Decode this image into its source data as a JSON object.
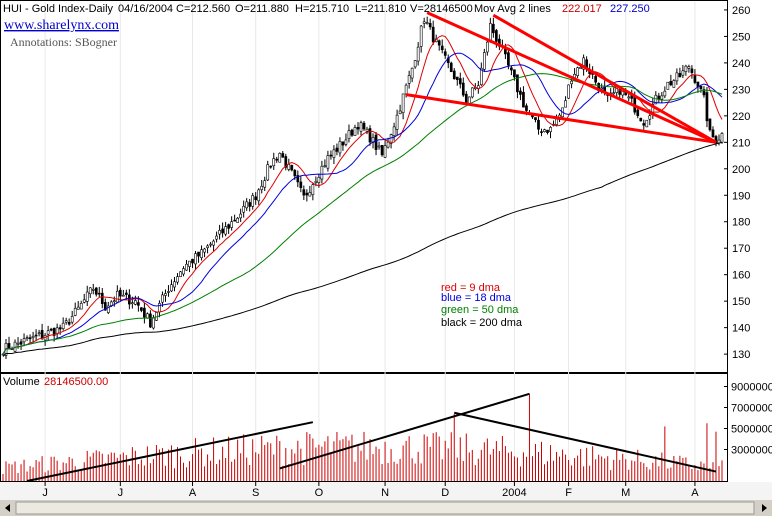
{
  "header": {
    "symbol": "HUI - Gold Index-Daily",
    "date": "04/16/2004",
    "close": "C=212.560",
    "open": "O=211.880",
    "high": "H=215.710",
    "low": "L=211.810",
    "volume": "V=28146500",
    "mov_avg_label": "Mov Avg 2 lines",
    "mov_avg_1": "222.017",
    "mov_avg_2": "227.250",
    "site": "www.sharelynx.com",
    "annotations": "Annotations: SBogner"
  },
  "legend": {
    "red": "red = 9 dma",
    "blue": "blue = 18 dma",
    "green": "green = 50 dma",
    "black": "black = 200 dma"
  },
  "colors": {
    "red_ma": "#e00000",
    "blue_ma": "#0000dd",
    "green_ma": "#008000",
    "black_ma": "#000000",
    "trendline": "#ff0000",
    "volume_bar": "#cc0000",
    "header_red": "#cc0000",
    "header_blue": "#0000cc",
    "site_link": "#0000cc"
  },
  "chart_data": [
    {
      "type": "candlestick",
      "ylim": [
        124,
        263
      ],
      "y_ticks": [
        "130",
        "140",
        "150",
        "160",
        "170",
        "180",
        "190",
        "200",
        "210",
        "220",
        "230",
        "240",
        "250",
        "260"
      ],
      "x_tick_labels": [
        "J",
        "J",
        "A",
        "S",
        "O",
        "N",
        "D",
        "2004",
        "F",
        "M",
        "A"
      ],
      "price_path": [
        {
          "i": 0,
          "p": 132
        },
        {
          "i": 10,
          "p": 136
        },
        {
          "i": 20,
          "p": 140
        },
        {
          "i": 25,
          "p": 147
        },
        {
          "i": 30,
          "p": 155
        },
        {
          "i": 34,
          "p": 148
        },
        {
          "i": 38,
          "p": 152
        },
        {
          "i": 44,
          "p": 150
        },
        {
          "i": 49,
          "p": 142
        },
        {
          "i": 55,
          "p": 155
        },
        {
          "i": 60,
          "p": 163
        },
        {
          "i": 66,
          "p": 168
        },
        {
          "i": 72,
          "p": 175
        },
        {
          "i": 78,
          "p": 182
        },
        {
          "i": 84,
          "p": 190
        },
        {
          "i": 89,
          "p": 202
        },
        {
          "i": 92,
          "p": 206
        },
        {
          "i": 96,
          "p": 198
        },
        {
          "i": 100,
          "p": 189
        },
        {
          "i": 104,
          "p": 197
        },
        {
          "i": 108,
          "p": 204
        },
        {
          "i": 113,
          "p": 210
        },
        {
          "i": 118,
          "p": 217
        },
        {
          "i": 122,
          "p": 212
        },
        {
          "i": 126,
          "p": 205
        },
        {
          "i": 131,
          "p": 220
        },
        {
          "i": 136,
          "p": 238
        },
        {
          "i": 140,
          "p": 257
        },
        {
          "i": 142,
          "p": 252
        },
        {
          "i": 146,
          "p": 243
        },
        {
          "i": 150,
          "p": 235
        },
        {
          "i": 154,
          "p": 226
        },
        {
          "i": 158,
          "p": 232
        },
        {
          "i": 162,
          "p": 254
        },
        {
          "i": 165,
          "p": 247
        },
        {
          "i": 170,
          "p": 233
        },
        {
          "i": 174,
          "p": 222
        },
        {
          "i": 178,
          "p": 215
        },
        {
          "i": 182,
          "p": 215
        },
        {
          "i": 186,
          "p": 222
        },
        {
          "i": 189,
          "p": 235
        },
        {
          "i": 193,
          "p": 241
        },
        {
          "i": 197,
          "p": 233
        },
        {
          "i": 201,
          "p": 226
        },
        {
          "i": 205,
          "p": 230
        },
        {
          "i": 209,
          "p": 225
        },
        {
          "i": 213,
          "p": 218
        },
        {
          "i": 217,
          "p": 226
        },
        {
          "i": 221,
          "p": 232
        },
        {
          "i": 225,
          "p": 235
        },
        {
          "i": 228,
          "p": 239
        },
        {
          "i": 231,
          "p": 232
        },
        {
          "i": 233,
          "p": 226
        },
        {
          "i": 235,
          "p": 213
        },
        {
          "i": 237,
          "p": 211
        },
        {
          "i": 239,
          "p": 213
        }
      ],
      "bar_count": 240,
      "moving_averages": [
        {
          "period": 9,
          "color_key": "red_ma"
        },
        {
          "period": 18,
          "color_key": "blue_ma"
        },
        {
          "period": 50,
          "color_key": "green_ma"
        },
        {
          "period": 200,
          "color_key": "black_ma"
        }
      ],
      "trendlines": [
        {
          "from": {
            "i": 141,
            "p": 259
          },
          "to": {
            "i": 237,
            "p": 210
          }
        },
        {
          "from": {
            "i": 163,
            "p": 258
          },
          "to": {
            "i": 237,
            "p": 210
          }
        },
        {
          "from": {
            "i": 134,
            "p": 228
          },
          "to": {
            "i": 237,
            "p": 210
          }
        }
      ]
    },
    {
      "type": "bar",
      "title": "Volume",
      "value_label": "28146500.00",
      "ylim": [
        0,
        10000000
      ],
      "y_ticks": [
        "3000000",
        "5000000",
        "7000000",
        "9000000"
      ],
      "spikes": [
        {
          "i": 150,
          "v": 6400000
        },
        {
          "i": 175,
          "v": 8300000
        },
        {
          "i": 220,
          "v": 5200000
        },
        {
          "i": 234,
          "v": 5500000
        },
        {
          "i": 237,
          "v": 4700000
        }
      ],
      "base_volume": 2500000,
      "trendlines": [
        {
          "from": {
            "i": 8,
            "v": 0
          },
          "to": {
            "i": 103,
            "v": 5600000
          }
        },
        {
          "from": {
            "i": 92,
            "v": 1200000
          },
          "to": {
            "i": 175,
            "v": 8300000
          }
        },
        {
          "from": {
            "i": 150,
            "v": 6500000
          },
          "to": {
            "i": 237,
            "v": 900000
          }
        }
      ]
    }
  ]
}
